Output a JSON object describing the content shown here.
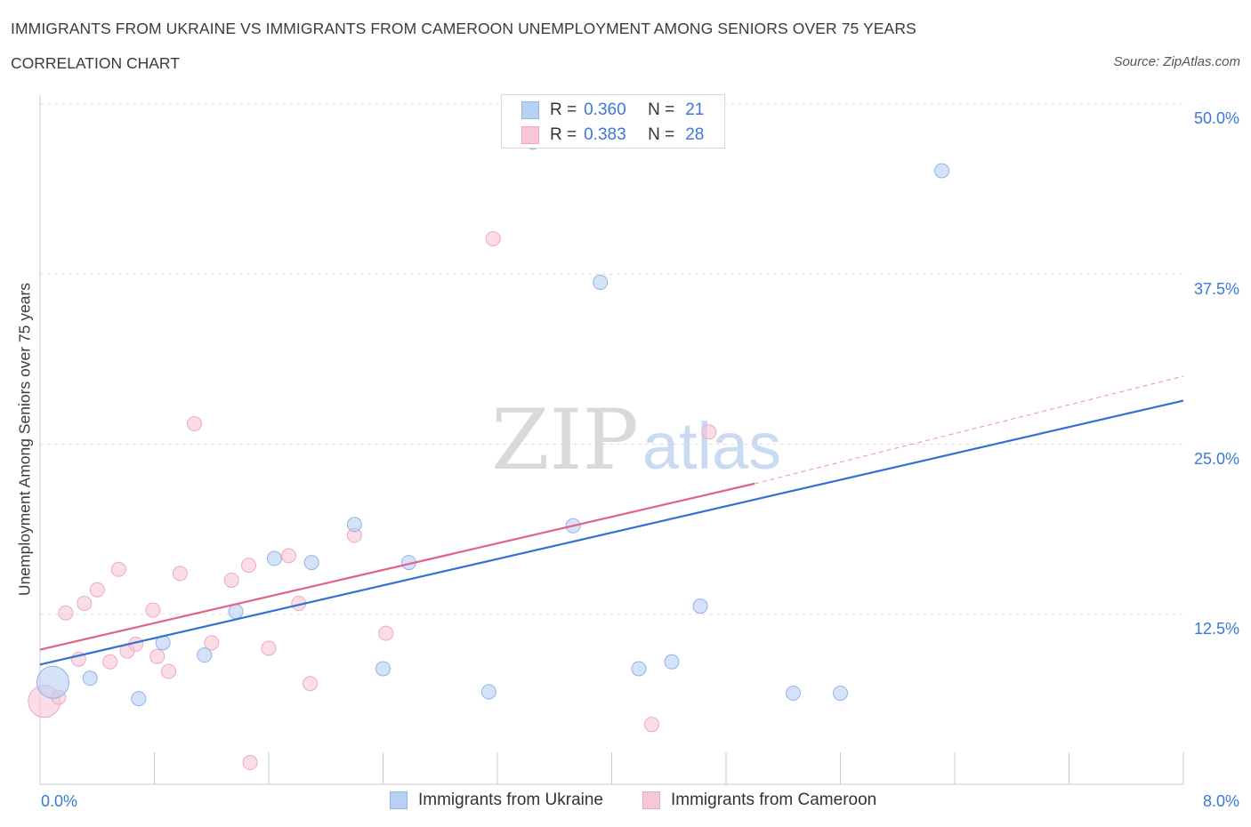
{
  "header": {
    "title": "IMMIGRANTS FROM UKRAINE VS IMMIGRANTS FROM CAMEROON UNEMPLOYMENT AMONG SENIORS OVER 75 YEARS",
    "subtitle": "CORRELATION CHART",
    "source": "Source: ZipAtlas.com"
  },
  "watermark": {
    "zip": "ZIP",
    "atlas": "atlas"
  },
  "legend": {
    "rows": [
      {
        "r_label": "R =",
        "r_value": "0.360",
        "n_label": "N =",
        "n_value": "21"
      },
      {
        "r_label": "R =",
        "r_value": "0.383",
        "n_label": "N =",
        "n_value": "28"
      }
    ]
  },
  "colors": {
    "ukraine_fill": "#b9d1f5",
    "ukraine_stroke": "#8fb3ea",
    "ukraine_line": "#3172d0",
    "cameroon_fill": "#f7c7d6",
    "cameroon_stroke": "#eea9bf",
    "cameroon_line": "#e0618c",
    "accent_text": "#3b78d8",
    "grid": "#dedede"
  },
  "chart_data": {
    "type": "scatter",
    "title": "IMMIGRANTS FROM UKRAINE VS IMMIGRANTS FROM CAMEROON UNEMPLOYMENT AMONG SENIORS OVER 75 YEARS",
    "subtitle": "CORRELATION CHART",
    "xlabel": "",
    "ylabel": "Unemployment Among Seniors over 75 years",
    "xlim": [
      0,
      8
    ],
    "ylim": [
      0,
      50
    ],
    "x_tick_labels": [
      "0.0%",
      "8.0%"
    ],
    "y_ticks": [
      12.5,
      25,
      37.5,
      50
    ],
    "y_tick_labels": [
      "12.5%",
      "25.0%",
      "37.5%",
      "50.0%"
    ],
    "grid": true,
    "legend_position": "bottom-center",
    "series": [
      {
        "name": "Immigrants from Ukraine",
        "r": 0.36,
        "n": 21,
        "points": [
          {
            "x": 0.09,
            "y": 7.5,
            "big": true
          },
          {
            "x": 0.35,
            "y": 7.8
          },
          {
            "x": 0.69,
            "y": 6.3
          },
          {
            "x": 0.86,
            "y": 10.4
          },
          {
            "x": 1.15,
            "y": 9.5
          },
          {
            "x": 1.37,
            "y": 12.7
          },
          {
            "x": 1.64,
            "y": 16.6
          },
          {
            "x": 1.9,
            "y": 16.3
          },
          {
            "x": 2.2,
            "y": 19.1
          },
          {
            "x": 2.4,
            "y": 8.5
          },
          {
            "x": 2.58,
            "y": 16.3
          },
          {
            "x": 3.14,
            "y": 6.8
          },
          {
            "x": 3.45,
            "y": 47.2
          },
          {
            "x": 3.73,
            "y": 19.0
          },
          {
            "x": 3.92,
            "y": 36.9
          },
          {
            "x": 4.19,
            "y": 8.5
          },
          {
            "x": 4.42,
            "y": 9.0
          },
          {
            "x": 4.62,
            "y": 13.1
          },
          {
            "x": 5.27,
            "y": 6.7
          },
          {
            "x": 5.6,
            "y": 6.7
          },
          {
            "x": 6.31,
            "y": 45.1
          }
        ],
        "trend": {
          "x0": 0,
          "y0": 8.8,
          "x1": 8,
          "y1": 28.2
        }
      },
      {
        "name": "Immigrants from Cameroon",
        "r": 0.383,
        "n": 28,
        "points": [
          {
            "x": 0.03,
            "y": 6.1,
            "big": true
          },
          {
            "x": 0.13,
            "y": 6.4
          },
          {
            "x": 0.18,
            "y": 12.6
          },
          {
            "x": 0.27,
            "y": 9.2
          },
          {
            "x": 0.31,
            "y": 13.3
          },
          {
            "x": 0.4,
            "y": 14.3
          },
          {
            "x": 0.49,
            "y": 9.0
          },
          {
            "x": 0.55,
            "y": 15.8
          },
          {
            "x": 0.61,
            "y": 9.8
          },
          {
            "x": 0.67,
            "y": 10.3
          },
          {
            "x": 0.79,
            "y": 12.8
          },
          {
            "x": 0.82,
            "y": 9.4
          },
          {
            "x": 0.9,
            "y": 8.3
          },
          {
            "x": 0.98,
            "y": 15.5
          },
          {
            "x": 1.08,
            "y": 26.5
          },
          {
            "x": 1.2,
            "y": 10.4
          },
          {
            "x": 1.34,
            "y": 15.0
          },
          {
            "x": 1.46,
            "y": 16.1
          },
          {
            "x": 1.47,
            "y": 1.6
          },
          {
            "x": 1.6,
            "y": 10.0
          },
          {
            "x": 1.74,
            "y": 16.8
          },
          {
            "x": 1.81,
            "y": 13.3
          },
          {
            "x": 1.89,
            "y": 7.4
          },
          {
            "x": 2.2,
            "y": 18.3
          },
          {
            "x": 2.42,
            "y": 11.1
          },
          {
            "x": 3.17,
            "y": 40.1
          },
          {
            "x": 4.28,
            "y": 4.4
          },
          {
            "x": 4.68,
            "y": 25.9
          }
        ],
        "trend": {
          "x0": 0,
          "y0": 9.9,
          "x1": 5.0,
          "y1": 22.1,
          "dashed_to_x": 8,
          "dashed_to_y": 30.0
        }
      }
    ]
  },
  "bottom_legend": {
    "items": [
      {
        "label": "Immigrants from Ukraine"
      },
      {
        "label": "Immigrants from Cameroon"
      }
    ]
  }
}
